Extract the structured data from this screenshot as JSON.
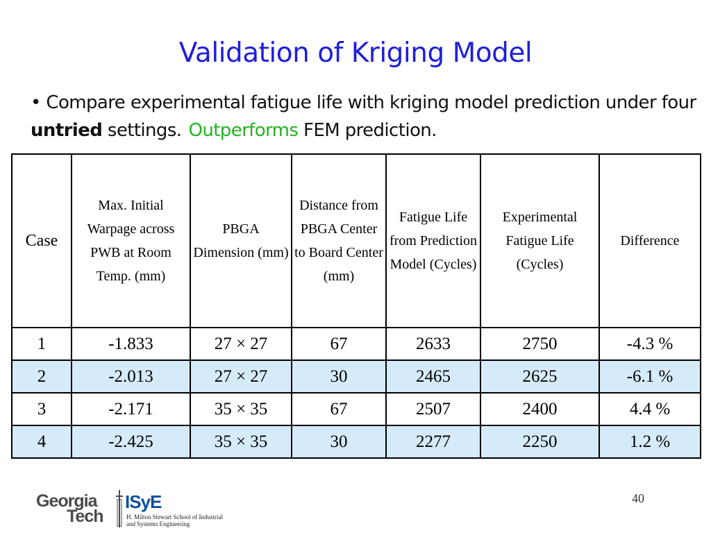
{
  "title": "Validation of Kriging Model",
  "bullet": {
    "marker": "•",
    "text_before": "Compare experimental fatigue life with kriging model prediction under four ",
    "bold": "untried",
    "text_after": " settings.",
    "green": "Outperforms",
    "text_end": " FEM prediction."
  },
  "table": {
    "headers": [
      "Case",
      "Max. Initial Warpage across PWB at Room Temp. (mm)",
      "PBGA Dimension (mm)",
      "Distance from PBGA Center to Board Center (mm)",
      "Fatigue Life from Prediction Model (Cycles)",
      "Experimental Fatigue Life (Cycles)",
      "Difference"
    ],
    "rows": [
      [
        "1",
        "-1.833",
        "27 × 27",
        "67",
        "2633",
        "2750",
        "-4.3 %"
      ],
      [
        "2",
        "-2.013",
        "27 × 27",
        "30",
        "2465",
        "2625",
        "-6.1 %"
      ],
      [
        "3",
        "-2.171",
        "35 × 35",
        "67",
        "2507",
        "2400",
        "4.4 %"
      ],
      [
        "4",
        "-2.425",
        "35 × 35",
        "30",
        "2277",
        "2250",
        "1.2 %"
      ]
    ]
  },
  "page_number": "40",
  "logo": {
    "gt_line1": "Georgia",
    "gt_line2": "Tech",
    "isye": "ISyE",
    "isye_sub": "H. Milton Stewart School of Industrial and Systems Engineering"
  },
  "colors": {
    "title": "#1f1fd9",
    "highlight": "#22b322",
    "row_shade": "#d6ebfa"
  }
}
